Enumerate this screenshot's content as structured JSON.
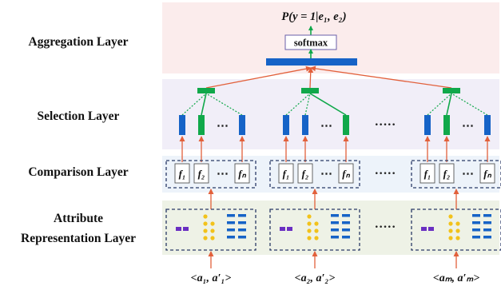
{
  "layers": {
    "aggregation": "Aggregation Layer",
    "selection": "Selection Layer",
    "comparison": "Comparison Layer",
    "attribute_line1": "Attribute",
    "attribute_line2": "Representation Layer"
  },
  "aggregation": {
    "formula": "P(y = 1|e₁, e₂)",
    "softmax": "softmax"
  },
  "functions": [
    "f₁",
    "f₂",
    "fₙ"
  ],
  "dots": "⋯",
  "ellipsis": "·····",
  "inputs": [
    "<a₁, a′₁>",
    "<a₂, a′₂>",
    "<aₘ, a′ₘ>"
  ],
  "colors": {
    "aggregation_bg": "#fbecec",
    "selection_bg": "#f1eef8",
    "comparison_bg": "#edf3fa",
    "attribute_bg": "#eef2e6",
    "blue": "#1663c7",
    "green": "#10a84a",
    "arrow": "#e2603b",
    "purple": "#6a2fc2",
    "yellow": "#f2c21b"
  }
}
